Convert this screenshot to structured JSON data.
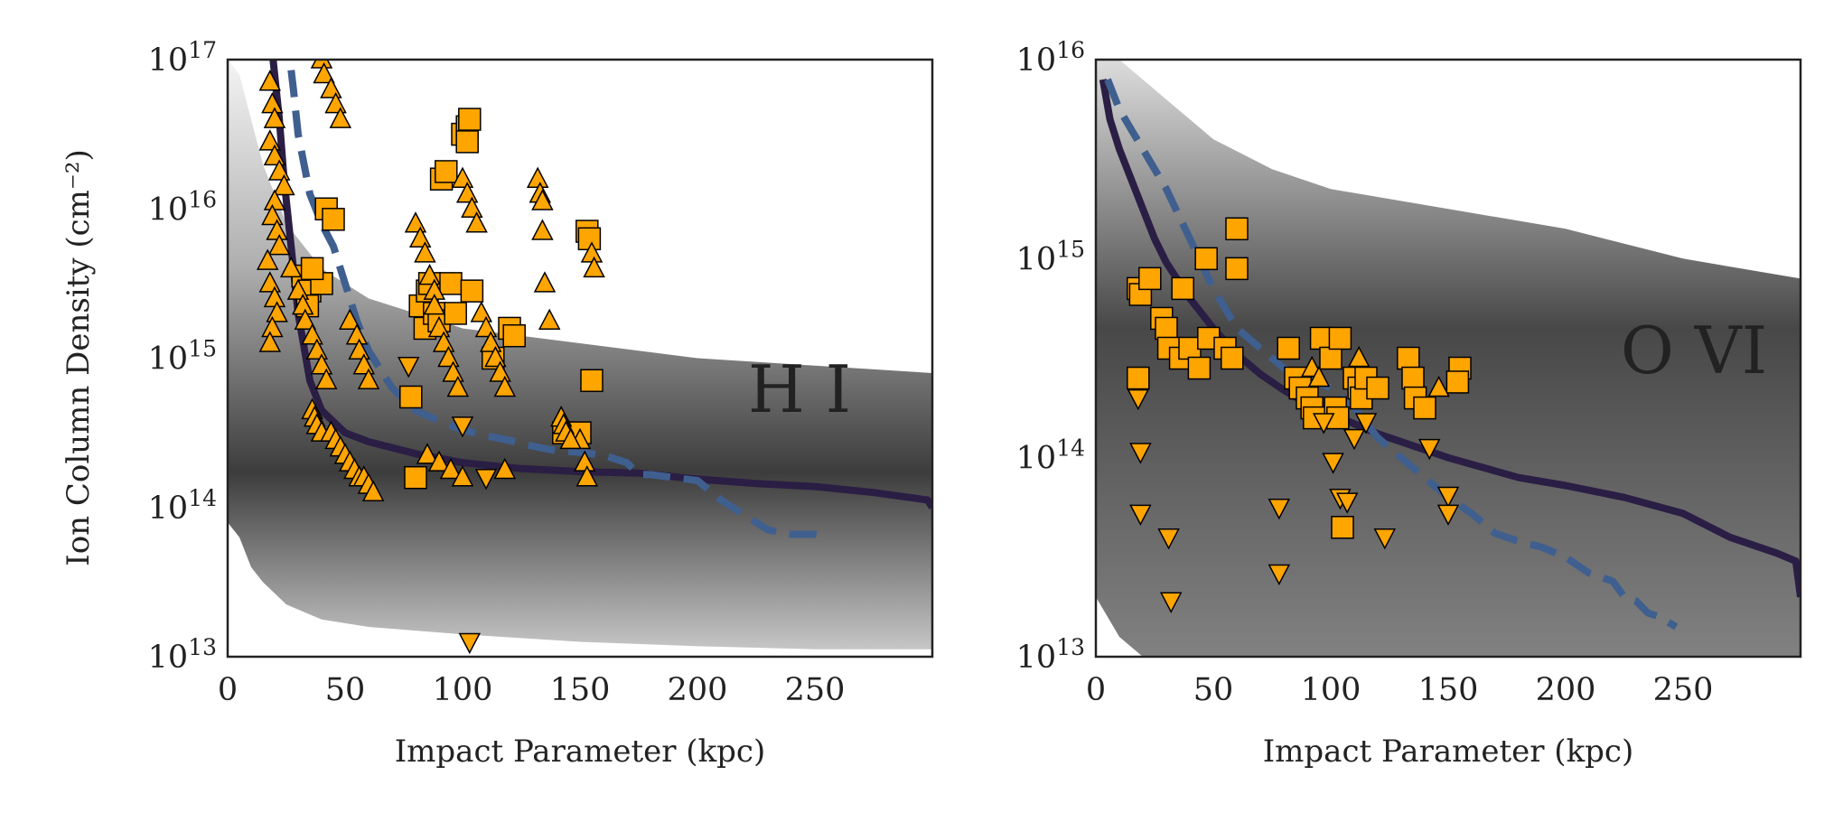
{
  "colors": {
    "marker_fill": "#FFA500",
    "marker_edge": "#000000",
    "solid_line": "#2b1e45",
    "dashed_line": "#3f5f8f",
    "band": "#1a1a1a"
  },
  "chart_data": [
    {
      "type": "scatter",
      "panel": "H I",
      "ion_label": "H I",
      "xlabel": "Impact Parameter (kpc)",
      "ylabel": "Ion Column Density (cm⁻²)",
      "xlim": [
        0,
        300
      ],
      "ylim_log10": [
        13,
        17
      ],
      "yscale": "log",
      "xticks": [
        0,
        50,
        100,
        150,
        200,
        250
      ],
      "xtick_labels": [
        "0",
        "50",
        "100",
        "150",
        "200",
        "250"
      ],
      "yticks_log10": [
        13,
        14,
        15,
        16,
        17
      ],
      "ytick_labels": [
        {
          "base": "10",
          "exp": "13"
        },
        {
          "base": "10",
          "exp": "14"
        },
        {
          "base": "10",
          "exp": "15"
        },
        {
          "base": "10",
          "exp": "16"
        },
        {
          "base": "10",
          "exp": "17"
        }
      ],
      "band": {
        "x": [
          0,
          5,
          10,
          15,
          25,
          40,
          60,
          100,
          150,
          200,
          250,
          300
        ],
        "lo_log10": [
          13.9,
          13.8,
          13.6,
          13.5,
          13.35,
          13.25,
          13.2,
          13.15,
          13.1,
          13.07,
          13.05,
          13.05
        ],
        "hi_log10": [
          17.0,
          16.9,
          16.6,
          16.3,
          15.9,
          15.6,
          15.4,
          15.2,
          15.1,
          15.0,
          14.95,
          14.9
        ]
      },
      "series": [
        {
          "kind": "solid-line",
          "x": [
            18,
            20,
            22,
            24,
            26,
            28,
            30,
            35,
            40,
            50,
            60,
            80,
            100,
            125,
            150,
            175,
            200,
            225,
            250,
            275,
            298,
            300
          ],
          "y_log10": [
            17.2,
            16.9,
            16.6,
            16.2,
            15.9,
            15.6,
            15.3,
            14.85,
            14.65,
            14.5,
            14.44,
            14.36,
            14.3,
            14.26,
            14.24,
            14.23,
            14.19,
            14.16,
            14.14,
            14.1,
            14.05,
            14.0
          ]
        },
        {
          "kind": "dashed-line",
          "x": [
            25,
            28,
            30,
            35,
            40,
            45,
            50,
            55,
            60,
            70,
            80,
            90,
            100,
            110,
            120,
            130,
            140,
            150,
            160,
            170,
            175,
            180,
            190,
            200,
            210,
            220,
            230,
            240,
            250,
            253
          ],
          "y_log10": [
            17.2,
            16.8,
            16.5,
            16.1,
            15.9,
            15.75,
            15.5,
            15.25,
            15.05,
            14.8,
            14.65,
            14.58,
            14.52,
            14.48,
            14.45,
            14.41,
            14.38,
            14.37,
            14.35,
            14.3,
            14.22,
            14.22,
            14.2,
            14.18,
            14.05,
            13.95,
            13.85,
            13.82,
            13.82,
            13.81
          ]
        },
        {
          "kind": "square",
          "x": [
            42,
            45,
            32,
            35,
            40,
            34,
            36,
            78,
            80,
            82,
            84,
            85,
            86,
            88,
            90,
            91,
            93,
            95,
            97,
            100,
            102,
            102,
            103,
            104,
            113,
            120,
            122,
            143,
            153,
            154,
            155,
            150
          ],
          "y_log10": [
            16.0,
            15.93,
            15.55,
            15.45,
            15.5,
            15.35,
            15.6,
            14.74,
            14.2,
            15.35,
            15.2,
            15.45,
            15.5,
            15.3,
            15.25,
            16.2,
            16.25,
            15.5,
            15.3,
            16.5,
            16.55,
            16.45,
            16.6,
            15.45,
            15.0,
            15.2,
            15.15,
            14.5,
            15.85,
            15.8,
            14.85,
            14.5
          ]
        },
        {
          "kind": "triangle-up",
          "x": [
            18,
            19,
            20,
            18,
            20,
            22,
            24,
            20,
            19,
            21,
            22,
            17,
            18,
            20,
            21,
            19,
            18,
            27,
            30,
            32,
            33,
            36,
            38,
            40,
            42,
            40,
            41,
            44,
            46,
            48,
            52,
            55,
            56,
            58,
            60,
            36,
            37,
            38,
            40,
            44,
            46,
            48,
            50,
            52,
            54,
            56,
            58,
            60,
            62,
            80,
            82,
            84,
            86,
            88,
            88,
            90,
            92,
            94,
            96,
            98,
            100,
            102,
            104,
            106,
            108,
            110,
            112,
            114,
            116,
            118,
            118,
            132,
            133,
            134,
            134,
            135,
            137,
            150,
            152,
            153,
            155,
            156,
            142,
            143,
            144,
            146,
            85,
            90,
            95,
            100
          ],
          "y_log10": [
            16.85,
            16.7,
            16.6,
            16.45,
            16.35,
            16.25,
            16.15,
            16.05,
            15.95,
            15.85,
            15.75,
            15.65,
            15.5,
            15.4,
            15.3,
            15.2,
            15.1,
            15.6,
            15.45,
            15.35,
            15.25,
            15.15,
            15.05,
            14.95,
            14.85,
            17.0,
            16.9,
            16.8,
            16.7,
            16.6,
            15.25,
            15.15,
            15.05,
            14.95,
            14.85,
            14.65,
            14.6,
            14.55,
            14.5,
            14.5,
            14.45,
            14.4,
            14.35,
            14.3,
            14.25,
            14.2,
            14.2,
            14.15,
            14.1,
            15.9,
            15.8,
            15.7,
            15.55,
            15.45,
            15.35,
            15.2,
            15.1,
            15.0,
            14.9,
            14.8,
            16.2,
            16.1,
            16.0,
            15.9,
            15.3,
            15.2,
            15.1,
            15.0,
            14.9,
            14.8,
            14.25,
            16.2,
            16.1,
            16.05,
            15.85,
            15.5,
            15.25,
            14.45,
            14.3,
            14.2,
            15.7,
            15.6,
            14.6,
            14.55,
            14.5,
            14.45,
            14.35,
            14.3,
            14.25,
            14.2
          ]
        },
        {
          "kind": "triangle-down",
          "x": [
            77,
            100,
            103,
            110
          ],
          "y_log10": [
            14.95,
            14.55,
            13.1,
            14.2
          ]
        }
      ]
    },
    {
      "type": "scatter",
      "panel": "O VI",
      "ion_label": "O VI",
      "xlabel": "Impact Parameter (kpc)",
      "ylabel": "",
      "xlim": [
        0,
        300
      ],
      "ylim_log10": [
        13,
        16
      ],
      "yscale": "log",
      "xticks": [
        0,
        50,
        100,
        150,
        200,
        250
      ],
      "xtick_labels": [
        "0",
        "50",
        "100",
        "150",
        "200",
        "250"
      ],
      "yticks_log10": [
        13,
        14,
        15,
        16
      ],
      "ytick_labels": [
        {
          "base": "10",
          "exp": "13"
        },
        {
          "base": "10",
          "exp": "14"
        },
        {
          "base": "10",
          "exp": "15"
        },
        {
          "base": "10",
          "exp": "16"
        }
      ],
      "band": {
        "x": [
          0,
          5,
          10,
          20,
          30,
          50,
          75,
          100,
          150,
          200,
          250,
          300
        ],
        "lo_log10": [
          13.3,
          13.2,
          13.1,
          13.0,
          13.0,
          13.0,
          13.0,
          13.0,
          13.0,
          13.0,
          13.0,
          13.0
        ],
        "hi_log10": [
          16.0,
          16.0,
          16.0,
          15.9,
          15.8,
          15.6,
          15.45,
          15.35,
          15.25,
          15.15,
          15.0,
          14.9
        ]
      },
      "series": [
        {
          "kind": "solid-line",
          "x": [
            3,
            6,
            10,
            15,
            20,
            25,
            30,
            40,
            50,
            60,
            70,
            80,
            90,
            100,
            120,
            150,
            180,
            200,
            225,
            250,
            270,
            290,
            298,
            300
          ],
          "y_log10": [
            15.9,
            15.7,
            15.55,
            15.4,
            15.25,
            15.1,
            14.98,
            14.8,
            14.65,
            14.52,
            14.42,
            14.34,
            14.27,
            14.22,
            14.12,
            14.0,
            13.9,
            13.86,
            13.8,
            13.72,
            13.6,
            13.52,
            13.48,
            13.3
          ]
        },
        {
          "kind": "dashed-line",
          "x": [
            5,
            10,
            15,
            20,
            25,
            30,
            40,
            50,
            60,
            70,
            80,
            90,
            100,
            110,
            120,
            130,
            140,
            150,
            160,
            170,
            180,
            190,
            200,
            210,
            220,
            225,
            230,
            235,
            240,
            247
          ],
          "y_log10": [
            15.9,
            15.75,
            15.65,
            15.55,
            15.45,
            15.35,
            15.1,
            14.85,
            14.65,
            14.55,
            14.45,
            14.4,
            14.35,
            14.25,
            14.1,
            14.0,
            13.9,
            13.8,
            13.72,
            13.62,
            13.58,
            13.55,
            13.5,
            13.42,
            13.38,
            13.3,
            13.28,
            13.22,
            13.2,
            13.15
          ]
        },
        {
          "kind": "square",
          "x": [
            18,
            19,
            23,
            28,
            30,
            31,
            36,
            37,
            40,
            44,
            47,
            48,
            55,
            58,
            60,
            60,
            82,
            85,
            87,
            90,
            92,
            93,
            96,
            100,
            102,
            103,
            104,
            110,
            112,
            113,
            115,
            120,
            133,
            135,
            136,
            140,
            155,
            154,
            105,
            18
          ],
          "y_log10": [
            14.85,
            14.82,
            14.9,
            14.7,
            14.65,
            14.55,
            14.5,
            14.85,
            14.55,
            14.45,
            15.0,
            14.6,
            14.55,
            14.5,
            15.15,
            14.95,
            14.55,
            14.4,
            14.35,
            14.3,
            14.25,
            14.2,
            14.6,
            14.5,
            14.25,
            14.2,
            14.6,
            14.4,
            14.35,
            14.3,
            14.4,
            14.35,
            14.5,
            14.4,
            14.3,
            14.25,
            14.45,
            14.38,
            13.65,
            14.4
          ]
        },
        {
          "kind": "triangle-up",
          "x": [
            92,
            95,
            112,
            146
          ],
          "y_log10": [
            14.45,
            14.4,
            14.5,
            14.35
          ]
        },
        {
          "kind": "triangle-down",
          "x": [
            18,
            19,
            19,
            31,
            32,
            78,
            78,
            97,
            101,
            104,
            107,
            110,
            115,
            123,
            142,
            150,
            150
          ],
          "y_log10": [
            14.3,
            14.03,
            13.72,
            13.6,
            13.28,
            13.75,
            13.42,
            14.18,
            13.98,
            13.8,
            13.78,
            14.1,
            14.18,
            13.6,
            14.05,
            13.81,
            13.72
          ]
        }
      ]
    }
  ]
}
